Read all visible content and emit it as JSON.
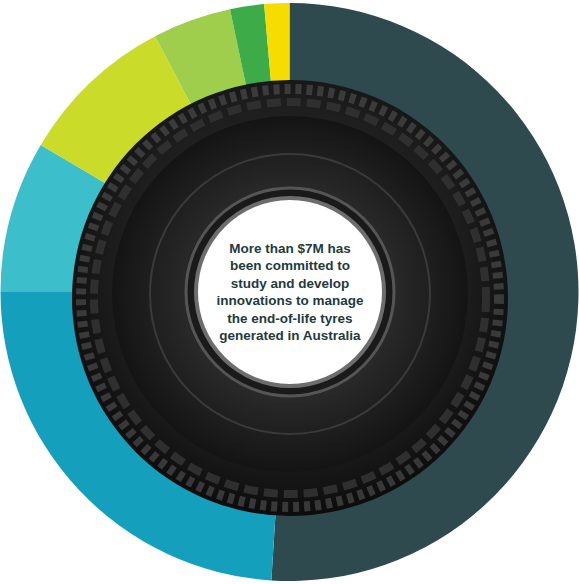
{
  "chart_data": {
    "type": "pie",
    "annotation": "More than $7M has been committed to study and develop innovations to manage the end-of-life tyres generated in Australia",
    "values": [
      51,
      24,
      8.5,
      8.8,
      4.4,
      1.9,
      1.4
    ],
    "colors": [
      "#2e4a4e",
      "#14a0bd",
      "#3cbfca",
      "#cadb2a",
      "#9fcd4c",
      "#3cab48",
      "#f7dc00"
    ]
  }
}
